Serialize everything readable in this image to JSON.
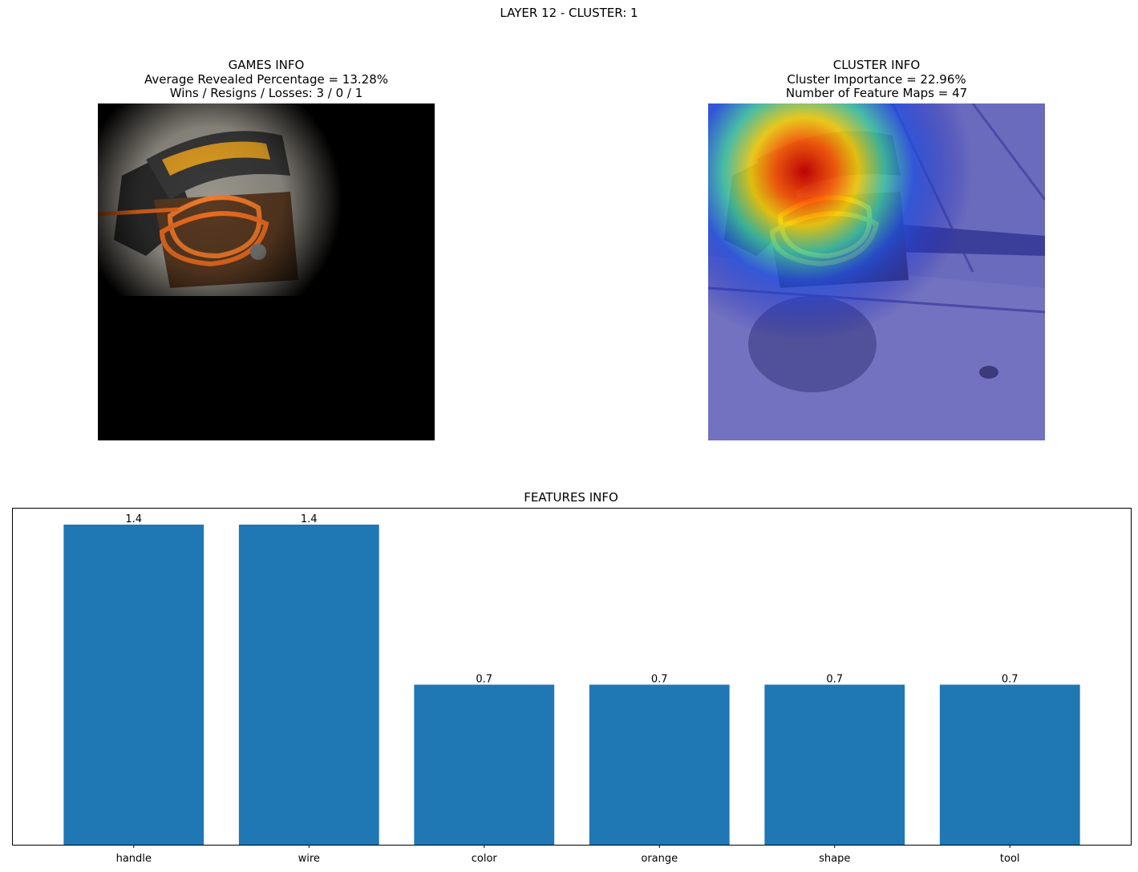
{
  "suptitle": "LAYER 12 - CLUSTER: 1",
  "games_info": {
    "title": "GAMES INFO",
    "line1": "Average Revealed Percentage = 13.28%",
    "line2": "Wins / Resigns / Losses: 3 / 0 / 1"
  },
  "cluster_info": {
    "title": "CLUSTER INFO",
    "line1": "Cluster Importance = 22.96%",
    "line2": "Number of Feature Maps = 47"
  },
  "colors": {
    "bar": "#1f77b4",
    "axis": "#000000"
  },
  "chart_data": {
    "type": "bar",
    "title": "FEATURES INFO",
    "categories": [
      "handle",
      "wire",
      "color",
      "orange",
      "shape",
      "tool"
    ],
    "values": [
      1.4,
      1.4,
      0.7,
      0.7,
      0.7,
      0.7
    ],
    "data_labels": [
      "1.4",
      "1.4",
      "0.7",
      "0.7",
      "0.7",
      "0.7"
    ],
    "xlabel": "",
    "ylabel": "",
    "ylim": [
      0,
      1.47
    ],
    "y_ticks_visible": false,
    "grid": false,
    "legend": "none"
  }
}
